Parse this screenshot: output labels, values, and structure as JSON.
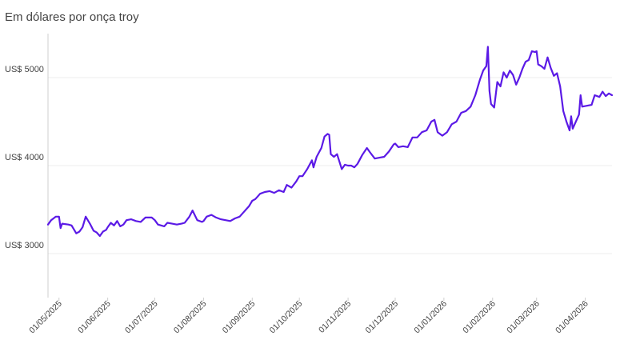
{
  "header": {
    "title": "",
    "subtitle": "Em dólares por onça troy"
  },
  "colors": {
    "line": "#5b1ae6",
    "grid": "#ececec",
    "axis": "#cfcfcf"
  },
  "chart_data": {
    "type": "line",
    "title": "",
    "subtitle": "Em dólares por onça troy",
    "xlabel": "",
    "ylabel": "",
    "ylim": [
      2500,
      5500
    ],
    "xlim": [
      "2025-04-24",
      "2026-04-18"
    ],
    "y_ticks": [
      {
        "value": 3000,
        "label": "US$ 3000"
      },
      {
        "value": 4000,
        "label": "US$ 4000"
      },
      {
        "value": 5000,
        "label": "US$ 5000"
      }
    ],
    "x_ticks": [
      {
        "date": "2025-05-01",
        "label": "01/05/2025"
      },
      {
        "date": "2025-06-01",
        "label": "01/06/2025"
      },
      {
        "date": "2025-07-01",
        "label": "01/07/2025"
      },
      {
        "date": "2025-08-01",
        "label": "01/08/2025"
      },
      {
        "date": "2025-09-01",
        "label": "01/09/2025"
      },
      {
        "date": "2025-10-01",
        "label": "01/10/2025"
      },
      {
        "date": "2025-11-01",
        "label": "01/11/2025"
      },
      {
        "date": "2025-12-01",
        "label": "01/12/2025"
      },
      {
        "date": "2026-01-01",
        "label": "01/01/2026"
      },
      {
        "date": "2026-02-01",
        "label": "01/02/2026"
      },
      {
        "date": "2026-03-01",
        "label": "01/03/2026"
      },
      {
        "date": "2026-04-01",
        "label": "01/04/2026"
      }
    ],
    "grid": true,
    "series": [
      {
        "name": "",
        "points": [
          [
            "2025-04-24",
            3330
          ],
          [
            "2025-04-26",
            3380
          ],
          [
            "2025-04-29",
            3420
          ],
          [
            "2025-05-01",
            3420
          ],
          [
            "2025-05-02",
            3290
          ],
          [
            "2025-05-03",
            3340
          ],
          [
            "2025-05-07",
            3330
          ],
          [
            "2025-05-09",
            3320
          ],
          [
            "2025-05-12",
            3230
          ],
          [
            "2025-05-14",
            3250
          ],
          [
            "2025-05-16",
            3300
          ],
          [
            "2025-05-18",
            3420
          ],
          [
            "2025-05-21",
            3330
          ],
          [
            "2025-05-23",
            3260
          ],
          [
            "2025-05-25",
            3240
          ],
          [
            "2025-05-27",
            3200
          ],
          [
            "2025-05-29",
            3250
          ],
          [
            "2025-05-31",
            3270
          ],
          [
            "2025-06-01",
            3300
          ],
          [
            "2025-06-03",
            3350
          ],
          [
            "2025-06-05",
            3320
          ],
          [
            "2025-06-07",
            3370
          ],
          [
            "2025-06-09",
            3310
          ],
          [
            "2025-06-11",
            3330
          ],
          [
            "2025-06-13",
            3380
          ],
          [
            "2025-06-16",
            3390
          ],
          [
            "2025-06-19",
            3370
          ],
          [
            "2025-06-22",
            3360
          ],
          [
            "2025-06-25",
            3410
          ],
          [
            "2025-06-29",
            3410
          ],
          [
            "2025-07-01",
            3380
          ],
          [
            "2025-07-03",
            3330
          ],
          [
            "2025-07-05",
            3320
          ],
          [
            "2025-07-07",
            3310
          ],
          [
            "2025-07-09",
            3350
          ],
          [
            "2025-07-12",
            3340
          ],
          [
            "2025-07-15",
            3330
          ],
          [
            "2025-07-18",
            3340
          ],
          [
            "2025-07-20",
            3350
          ],
          [
            "2025-07-23",
            3420
          ],
          [
            "2025-07-25",
            3490
          ],
          [
            "2025-07-28",
            3380
          ],
          [
            "2025-07-31",
            3360
          ],
          [
            "2025-08-01",
            3370
          ],
          [
            "2025-08-03",
            3420
          ],
          [
            "2025-08-06",
            3440
          ],
          [
            "2025-08-09",
            3410
          ],
          [
            "2025-08-12",
            3390
          ],
          [
            "2025-08-15",
            3380
          ],
          [
            "2025-08-18",
            3370
          ],
          [
            "2025-08-21",
            3400
          ],
          [
            "2025-08-24",
            3420
          ],
          [
            "2025-08-27",
            3480
          ],
          [
            "2025-08-30",
            3540
          ],
          [
            "2025-09-01",
            3600
          ],
          [
            "2025-09-03",
            3620
          ],
          [
            "2025-09-06",
            3680
          ],
          [
            "2025-09-09",
            3700
          ],
          [
            "2025-09-12",
            3710
          ],
          [
            "2025-09-15",
            3690
          ],
          [
            "2025-09-18",
            3720
          ],
          [
            "2025-09-21",
            3700
          ],
          [
            "2025-09-23",
            3780
          ],
          [
            "2025-09-26",
            3750
          ],
          [
            "2025-09-29",
            3820
          ],
          [
            "2025-10-01",
            3880
          ],
          [
            "2025-10-03",
            3880
          ],
          [
            "2025-10-06",
            3960
          ],
          [
            "2025-10-09",
            4060
          ],
          [
            "2025-10-10",
            3980
          ],
          [
            "2025-10-12",
            4100
          ],
          [
            "2025-10-15",
            4200
          ],
          [
            "2025-10-17",
            4330
          ],
          [
            "2025-10-19",
            4360
          ],
          [
            "2025-10-20",
            4350
          ],
          [
            "2025-10-21",
            4130
          ],
          [
            "2025-10-23",
            4100
          ],
          [
            "2025-10-25",
            4130
          ],
          [
            "2025-10-28",
            3960
          ],
          [
            "2025-10-30",
            4010
          ],
          [
            "2025-11-01",
            4000
          ],
          [
            "2025-11-03",
            4000
          ],
          [
            "2025-11-05",
            3980
          ],
          [
            "2025-11-07",
            4020
          ],
          [
            "2025-11-10",
            4120
          ],
          [
            "2025-11-13",
            4200
          ],
          [
            "2025-11-15",
            4150
          ],
          [
            "2025-11-18",
            4080
          ],
          [
            "2025-11-21",
            4090
          ],
          [
            "2025-11-24",
            4100
          ],
          [
            "2025-11-27",
            4160
          ],
          [
            "2025-11-30",
            4240
          ],
          [
            "2025-12-01",
            4250
          ],
          [
            "2025-12-03",
            4210
          ],
          [
            "2025-12-06",
            4220
          ],
          [
            "2025-12-09",
            4210
          ],
          [
            "2025-12-12",
            4320
          ],
          [
            "2025-12-15",
            4320
          ],
          [
            "2025-12-18",
            4380
          ],
          [
            "2025-12-21",
            4400
          ],
          [
            "2025-12-24",
            4500
          ],
          [
            "2025-12-26",
            4520
          ],
          [
            "2025-12-28",
            4380
          ],
          [
            "2025-12-31",
            4340
          ],
          [
            "2026-01-03",
            4380
          ],
          [
            "2026-01-06",
            4470
          ],
          [
            "2026-01-09",
            4500
          ],
          [
            "2026-01-12",
            4600
          ],
          [
            "2026-01-15",
            4620
          ],
          [
            "2026-01-18",
            4670
          ],
          [
            "2026-01-21",
            4800
          ],
          [
            "2026-01-24",
            4980
          ],
          [
            "2026-01-26",
            5080
          ],
          [
            "2026-01-28",
            5130
          ],
          [
            "2026-01-29",
            5350
          ],
          [
            "2026-01-30",
            4850
          ],
          [
            "2026-01-31",
            4700
          ],
          [
            "2026-02-02",
            4660
          ],
          [
            "2026-02-04",
            4950
          ],
          [
            "2026-02-06",
            4900
          ],
          [
            "2026-02-08",
            5060
          ],
          [
            "2026-02-10",
            5000
          ],
          [
            "2026-02-12",
            5080
          ],
          [
            "2026-02-14",
            5030
          ],
          [
            "2026-02-16",
            4920
          ],
          [
            "2026-02-18",
            5000
          ],
          [
            "2026-02-20",
            5100
          ],
          [
            "2026-02-22",
            5180
          ],
          [
            "2026-02-24",
            5200
          ],
          [
            "2026-02-26",
            5300
          ],
          [
            "2026-02-28",
            5290
          ],
          [
            "2026-03-01",
            5300
          ],
          [
            "2026-03-02",
            5150
          ],
          [
            "2026-03-04",
            5130
          ],
          [
            "2026-03-06",
            5100
          ],
          [
            "2026-03-08",
            5230
          ],
          [
            "2026-03-10",
            5110
          ],
          [
            "2026-03-12",
            5020
          ],
          [
            "2026-03-14",
            5050
          ],
          [
            "2026-03-16",
            4900
          ],
          [
            "2026-03-18",
            4620
          ],
          [
            "2026-03-20",
            4500
          ],
          [
            "2026-03-22",
            4400
          ],
          [
            "2026-03-23",
            4560
          ],
          [
            "2026-03-24",
            4420
          ],
          [
            "2026-03-26",
            4500
          ],
          [
            "2026-03-28",
            4580
          ],
          [
            "2026-03-29",
            4800
          ],
          [
            "2026-03-30",
            4670
          ],
          [
            "2026-04-02",
            4680
          ],
          [
            "2026-04-05",
            4690
          ],
          [
            "2026-04-07",
            4800
          ],
          [
            "2026-04-10",
            4780
          ],
          [
            "2026-04-12",
            4840
          ],
          [
            "2026-04-14",
            4790
          ],
          [
            "2026-04-16",
            4820
          ],
          [
            "2026-04-18",
            4800
          ]
        ]
      }
    ]
  }
}
